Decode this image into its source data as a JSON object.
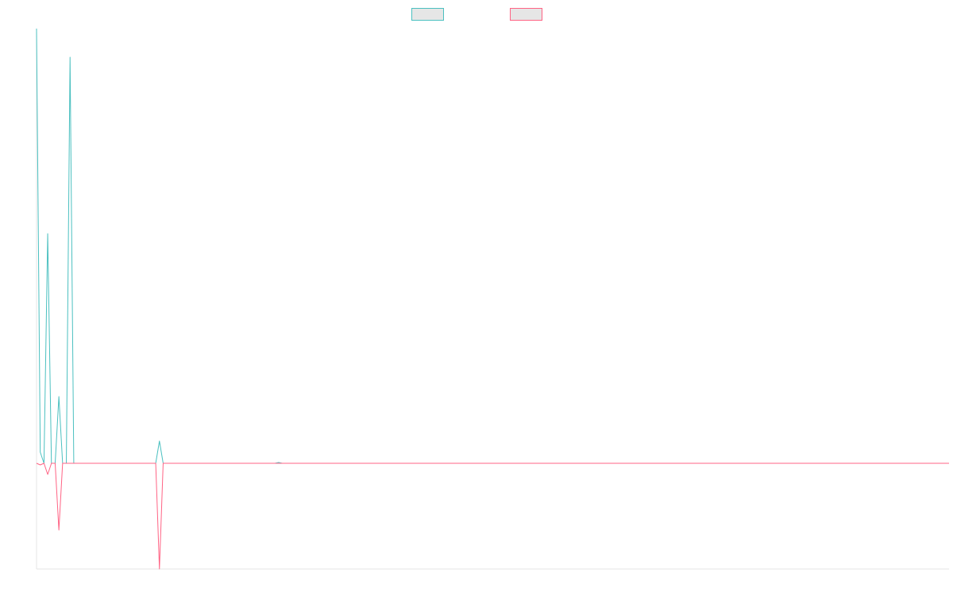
{
  "chart_data": {
    "type": "line",
    "ylim": [
      -133,
      547
    ],
    "legend": "top",
    "series": [
      {
        "color": "#4bc0c0",
        "values": [
          547,
          14,
          0,
          289,
          0,
          0,
          84,
          0,
          0,
          511,
          0,
          0,
          0,
          0,
          0,
          0,
          0,
          0,
          0,
          0,
          0,
          0,
          0,
          0,
          0,
          0,
          0,
          0,
          0,
          0,
          0,
          0,
          0,
          28,
          0,
          0,
          0,
          0,
          0,
          0,
          0,
          0,
          0,
          0,
          0,
          0,
          0,
          0,
          0,
          0,
          0,
          0,
          0,
          0,
          0,
          0,
          0,
          0,
          0,
          0,
          0,
          0,
          0,
          0,
          0,
          1,
          0,
          0,
          0,
          0,
          0,
          0,
          0,
          0,
          0,
          0,
          0,
          0,
          0,
          0,
          0,
          0,
          0,
          0,
          0,
          0,
          0,
          0,
          0,
          0,
          0,
          0,
          0,
          0,
          0,
          0,
          0,
          0,
          0,
          0,
          0,
          0,
          0,
          0,
          0,
          0,
          0,
          0,
          0,
          0,
          0,
          0,
          0,
          0,
          0,
          0,
          0,
          0,
          0,
          0,
          0,
          0,
          0,
          0,
          0,
          0,
          0,
          0,
          0,
          0,
          0,
          0,
          0,
          0,
          0,
          0,
          0,
          0,
          0,
          0,
          0,
          0,
          0,
          0,
          0,
          0,
          0,
          0,
          0,
          0,
          0,
          0,
          0,
          0,
          0,
          0,
          0,
          0,
          0,
          0,
          0,
          0,
          0,
          0,
          0,
          0,
          0,
          0,
          0,
          0,
          0,
          0,
          0,
          0,
          0,
          0,
          0,
          0,
          0,
          0,
          0,
          0,
          0,
          0,
          0,
          0,
          0,
          0,
          0,
          0,
          0,
          0,
          0,
          0,
          0,
          0,
          0,
          0,
          0,
          0,
          0,
          0,
          0,
          0,
          0,
          0,
          0,
          0,
          0,
          0,
          0,
          0,
          0,
          0,
          0,
          0,
          0,
          0,
          0,
          0,
          0,
          0,
          0,
          0,
          0,
          0,
          0,
          0,
          0,
          0,
          0,
          0,
          0,
          0,
          0,
          0,
          0,
          0,
          0,
          0,
          0,
          0,
          0,
          0,
          0,
          0
        ]
      },
      {
        "color": "#ff6384",
        "values": [
          0,
          -2,
          0,
          -14,
          0,
          0,
          -84,
          0,
          0,
          0,
          0,
          0,
          0,
          0,
          0,
          0,
          0,
          0,
          0,
          0,
          0,
          0,
          0,
          0,
          0,
          0,
          0,
          0,
          0,
          0,
          0,
          0,
          0,
          -133,
          0,
          0,
          0,
          0,
          0,
          0,
          0,
          0,
          0,
          0,
          0,
          0,
          0,
          0,
          0,
          0,
          0,
          0,
          0,
          0,
          0,
          0,
          0,
          0,
          0,
          0,
          0,
          0,
          0,
          0,
          0,
          0,
          0,
          0,
          0,
          0,
          0,
          0,
          0,
          0,
          0,
          0,
          0,
          0,
          0,
          0,
          0,
          0,
          0,
          0,
          0,
          0,
          0,
          0,
          0,
          0,
          0,
          0,
          0,
          0,
          0,
          0,
          0,
          0,
          0,
          0,
          0,
          0,
          0,
          0,
          0,
          0,
          0,
          0,
          0,
          0,
          0,
          0,
          0,
          0,
          0,
          0,
          0,
          0,
          0,
          0,
          0,
          0,
          0,
          0,
          0,
          0,
          0,
          0,
          0,
          0,
          0,
          0,
          0,
          0,
          0,
          0,
          0,
          0,
          0,
          0,
          0,
          0,
          0,
          0,
          0,
          0,
          0,
          0,
          0,
          0,
          0,
          0,
          0,
          0,
          0,
          0,
          0,
          0,
          0,
          0,
          0,
          0,
          0,
          0,
          0,
          0,
          0,
          0,
          0,
          0,
          0,
          0,
          0,
          0,
          0,
          0,
          0,
          0,
          0,
          0,
          0,
          0,
          0,
          0,
          0,
          0,
          0,
          0,
          0,
          0,
          0,
          0,
          0,
          0,
          0,
          0,
          0,
          0,
          0,
          0,
          0,
          0,
          0,
          0,
          0,
          0,
          0,
          0,
          0,
          0,
          0,
          0,
          0,
          0,
          0,
          0,
          0,
          0,
          0,
          0,
          0,
          0,
          0,
          0,
          0,
          0,
          0,
          0,
          0,
          0,
          0,
          0,
          0,
          0,
          0,
          0,
          0,
          0,
          0,
          0,
          0,
          0,
          0,
          0,
          0,
          0
        ]
      }
    ]
  }
}
